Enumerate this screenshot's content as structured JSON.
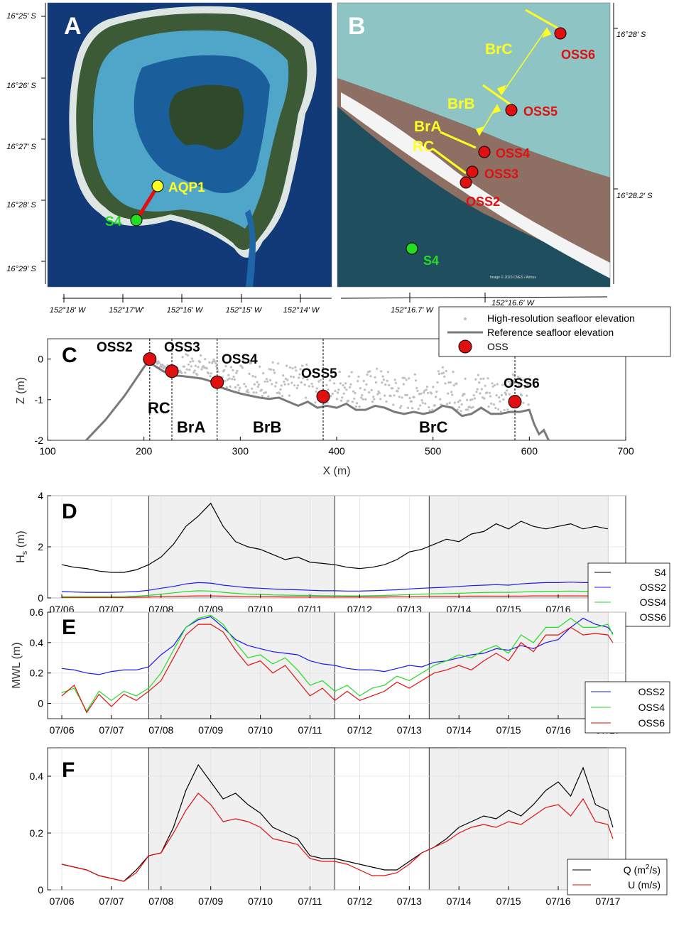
{
  "colors": {
    "red": "#e01010",
    "blue": "#1a1aee",
    "green": "#22dd22",
    "yellow": "#ffff22",
    "black": "#000000",
    "gray_ref": "#7a7a7a",
    "gray_hr": "#bfbfbf",
    "shade": "#f0f0f0",
    "sea": "#123a78",
    "lagoon": "#4fa6c8",
    "land": "#2f4a2a",
    "reefflat": "#8d6f63",
    "surf": "#f4f4f4",
    "ocean_b": "#1f4e5e",
    "lagoon_b": "#8ec4c4"
  },
  "panels": {
    "A": {
      "letter": "A",
      "lat_labels": [
        "16°25' S",
        "16°26' S",
        "16°27' S",
        "16°28' S",
        "16°29' S"
      ],
      "lon_labels": [
        "152°18' W",
        "152°17'W'",
        "152°16' W",
        "152°15' W",
        "152°14' W"
      ],
      "stations": [
        {
          "label": "AQP1",
          "color": "yellow"
        },
        {
          "label": "S4",
          "color": "green"
        }
      ],
      "icons": [
        "island-satellite-image"
      ]
    },
    "B": {
      "letter": "B",
      "lat_labels": [
        "16°28' S",
        "16°28.2' S"
      ],
      "lon_labels": [
        "152°16.7' W",
        "152°16.6' W"
      ],
      "stations": [
        "OSS6",
        "OSS5",
        "OSS4",
        "OSS3",
        "OSS2",
        "S4"
      ],
      "zones": [
        "BrC",
        "BrB",
        "BrA",
        "RC"
      ],
      "credit": "Image © 2020 CNES / Airbus"
    },
    "C": {
      "letter": "C",
      "ylabel": "Z (m)",
      "xlabel": "X (m)",
      "xticks": [
        "100",
        "200",
        "300",
        "400",
        "500",
        "600",
        "700"
      ],
      "yticks": [
        "0",
        "-1",
        "-2"
      ],
      "legend": [
        "High-resolution seafloor elevation",
        "Reference seafloor elevation",
        "OSS"
      ],
      "sensors": [
        "OSS2",
        "OSS3",
        "OSS4",
        "OSS5",
        "OSS6"
      ],
      "zones": [
        "RC",
        "BrA",
        "BrB",
        "BrC"
      ]
    },
    "D": {
      "letter": "D",
      "ylabel": "H",
      "ylabel_sub": "s",
      "ylabel_unit": " (m)",
      "yticks": [
        "0",
        "2",
        "4"
      ],
      "legend": [
        "S4",
        "OSS2",
        "OSS4",
        "OSS6"
      ]
    },
    "E": {
      "letter": "E",
      "ylabel": "MWL (m)",
      "yticks": [
        "0",
        "0.2",
        "0.4",
        "0.6"
      ],
      "legend": [
        "OSS2",
        "OSS4",
        "OSS6"
      ]
    },
    "F": {
      "letter": "F",
      "yticks": [
        "0",
        "0.2",
        "0.4"
      ],
      "legend_q": "Q (m",
      "legend_q_sup": "2",
      "legend_q_end": "/s)",
      "legend_u": "U (m/s)"
    },
    "date_ticks": [
      "07/06",
      "07/07",
      "07/08",
      "07/09",
      "07/10",
      "07/11",
      "07/12",
      "07/13",
      "07/14",
      "07/15",
      "07/16",
      "07/17"
    ]
  },
  "chart_data": [
    {
      "type": "line",
      "panel": "C",
      "xlabel": "X (m)",
      "ylabel": "Z (m)",
      "xlim": [
        100,
        700
      ],
      "ylim": [
        -2,
        0.5
      ],
      "series": [
        {
          "name": "Reference seafloor elevation",
          "x": [
            140,
            150,
            160,
            170,
            180,
            190,
            200,
            205,
            210,
            220,
            230,
            240,
            250,
            260,
            270,
            280,
            290,
            300,
            310,
            320,
            330,
            340,
            350,
            360,
            370,
            380,
            390,
            400,
            410,
            420,
            430,
            440,
            450,
            460,
            470,
            480,
            490,
            500,
            510,
            520,
            530,
            540,
            550,
            560,
            570,
            580,
            590,
            600,
            605,
            610,
            615,
            620
          ],
          "y": [
            -2.0,
            -1.75,
            -1.5,
            -1.2,
            -0.9,
            -0.55,
            -0.2,
            -0.05,
            -0.15,
            -0.3,
            -0.4,
            -0.42,
            -0.45,
            -0.48,
            -0.55,
            -0.7,
            -0.78,
            -0.85,
            -0.9,
            -0.95,
            -0.98,
            -0.95,
            -1.05,
            -1.15,
            -1.05,
            -1.2,
            -1.15,
            -1.2,
            -1.1,
            -1.25,
            -1.25,
            -1.15,
            -1.2,
            -1.3,
            -1.35,
            -1.3,
            -1.35,
            -1.3,
            -1.15,
            -1.2,
            -1.4,
            -1.35,
            -1.2,
            -1.35,
            -1.35,
            -1.3,
            -1.3,
            -1.25,
            -1.6,
            -1.85,
            -1.75,
            -2.0
          ]
        },
        {
          "name": "OSS",
          "labels": [
            "OSS2",
            "OSS3",
            "OSS4",
            "OSS5",
            "OSS6"
          ],
          "x": [
            206,
            229,
            276,
            386,
            585
          ],
          "y": [
            0.0,
            -0.3,
            -0.57,
            -0.92,
            -1.05
          ]
        }
      ],
      "zone_boundaries_x": [
        206,
        229,
        276,
        386,
        585
      ]
    },
    {
      "type": "line",
      "panel": "D",
      "ylabel": "Hs (m)",
      "ylim": [
        0,
        4
      ],
      "x_days": [
        0,
        0.25,
        0.5,
        0.75,
        1.0,
        1.25,
        1.5,
        1.75,
        2.0,
        2.25,
        2.5,
        2.75,
        3.0,
        3.25,
        3.5,
        3.75,
        4.0,
        4.25,
        4.5,
        4.75,
        5.0,
        5.25,
        5.5,
        5.75,
        6.0,
        6.25,
        6.5,
        6.75,
        7.0,
        7.25,
        7.5,
        7.75,
        8.0,
        8.25,
        8.5,
        8.75,
        9.0,
        9.25,
        9.5,
        9.75,
        10.0,
        10.25,
        10.5,
        10.75,
        11.0
      ],
      "series": [
        {
          "name": "S4",
          "values": [
            1.3,
            1.2,
            1.15,
            1.05,
            1.0,
            1.0,
            1.1,
            1.3,
            1.6,
            2.1,
            2.8,
            3.2,
            3.7,
            2.8,
            2.2,
            2.0,
            1.9,
            1.7,
            1.5,
            1.6,
            1.4,
            1.35,
            1.3,
            1.2,
            1.15,
            1.2,
            1.3,
            1.5,
            1.8,
            1.9,
            2.1,
            2.3,
            2.2,
            2.5,
            2.6,
            2.9,
            2.7,
            3.0,
            2.8,
            2.7,
            2.8,
            2.9,
            2.7,
            2.8,
            2.7
          ]
        },
        {
          "name": "OSS2",
          "values": [
            0.25,
            0.23,
            0.22,
            0.22,
            0.22,
            0.23,
            0.25,
            0.3,
            0.38,
            0.45,
            0.55,
            0.6,
            0.58,
            0.5,
            0.45,
            0.4,
            0.38,
            0.35,
            0.33,
            0.32,
            0.3,
            0.28,
            0.28,
            0.27,
            0.27,
            0.28,
            0.3,
            0.32,
            0.35,
            0.38,
            0.4,
            0.42,
            0.45,
            0.48,
            0.5,
            0.52,
            0.5,
            0.55,
            0.58,
            0.6,
            0.6,
            0.62,
            0.6,
            0.6,
            0.6
          ]
        },
        {
          "name": "OSS4",
          "values": [
            0.05,
            0.05,
            0.05,
            0.05,
            0.05,
            0.05,
            0.07,
            0.1,
            0.15,
            0.2,
            0.25,
            0.28,
            0.27,
            0.22,
            0.18,
            0.15,
            0.14,
            0.12,
            0.11,
            0.1,
            0.1,
            0.09,
            0.09,
            0.08,
            0.08,
            0.09,
            0.1,
            0.11,
            0.13,
            0.15,
            0.16,
            0.17,
            0.18,
            0.2,
            0.21,
            0.22,
            0.22,
            0.23,
            0.25,
            0.26,
            0.26,
            0.27,
            0.26,
            0.26,
            0.26
          ]
        },
        {
          "name": "OSS6",
          "values": [
            0.02,
            0.02,
            0.02,
            0.02,
            0.02,
            0.02,
            0.03,
            0.04,
            0.05,
            0.06,
            0.07,
            0.08,
            0.08,
            0.07,
            0.06,
            0.05,
            0.05,
            0.05,
            0.04,
            0.04,
            0.04,
            0.04,
            0.04,
            0.04,
            0.04,
            0.04,
            0.04,
            0.05,
            0.05,
            0.06,
            0.06,
            0.06,
            0.06,
            0.07,
            0.07,
            0.07,
            0.07,
            0.07,
            0.08,
            0.08,
            0.08,
            0.08,
            0.08,
            0.08,
            0.08
          ]
        }
      ],
      "shaded_days": [
        [
          1.75,
          5.5
        ],
        [
          7.4,
          11.0
        ]
      ]
    },
    {
      "type": "line",
      "panel": "E",
      "ylabel": "MWL (m)",
      "ylim": [
        -0.1,
        0.6
      ],
      "x_days": [
        0,
        0.25,
        0.5,
        0.75,
        1.0,
        1.25,
        1.5,
        1.75,
        2.0,
        2.25,
        2.5,
        2.75,
        3.0,
        3.25,
        3.5,
        3.75,
        4.0,
        4.25,
        4.5,
        4.75,
        5.0,
        5.25,
        5.5,
        5.75,
        6.0,
        6.25,
        6.5,
        6.75,
        7.0,
        7.25,
        7.5,
        7.75,
        8.0,
        8.25,
        8.5,
        8.75,
        9.0,
        9.25,
        9.5,
        9.75,
        10.0,
        10.25,
        10.5,
        10.75,
        11.0,
        11.1
      ],
      "series": [
        {
          "name": "OSS2",
          "values": [
            0.23,
            0.22,
            0.2,
            0.19,
            0.21,
            0.22,
            0.22,
            0.24,
            0.32,
            0.38,
            0.5,
            0.55,
            0.57,
            0.5,
            0.42,
            0.38,
            0.36,
            0.34,
            0.33,
            0.32,
            0.28,
            0.26,
            0.25,
            0.23,
            0.22,
            0.22,
            0.21,
            0.23,
            0.25,
            0.24,
            0.27,
            0.28,
            0.3,
            0.32,
            0.33,
            0.36,
            0.35,
            0.38,
            0.36,
            0.4,
            0.42,
            0.5,
            0.56,
            0.52,
            0.5,
            0.46
          ]
        },
        {
          "name": "OSS4",
          "values": [
            0.07,
            0.1,
            -0.05,
            0.08,
            0.02,
            0.08,
            0.05,
            0.1,
            0.2,
            0.35,
            0.5,
            0.56,
            0.58,
            0.52,
            0.4,
            0.3,
            0.32,
            0.26,
            0.3,
            0.22,
            0.12,
            0.15,
            0.08,
            0.12,
            0.05,
            0.1,
            0.12,
            0.18,
            0.15,
            0.2,
            0.25,
            0.28,
            0.32,
            0.3,
            0.35,
            0.38,
            0.33,
            0.45,
            0.4,
            0.5,
            0.5,
            0.56,
            0.5,
            0.5,
            0.52,
            0.45
          ]
        },
        {
          "name": "OSS6",
          "values": [
            0.05,
            0.12,
            -0.06,
            0.06,
            -0.02,
            0.06,
            0.02,
            0.08,
            0.15,
            0.3,
            0.45,
            0.52,
            0.52,
            0.47,
            0.35,
            0.25,
            0.28,
            0.2,
            0.25,
            0.15,
            0.05,
            0.1,
            0.02,
            0.08,
            0.02,
            0.05,
            0.08,
            0.14,
            0.1,
            0.15,
            0.2,
            0.22,
            0.25,
            0.22,
            0.28,
            0.33,
            0.28,
            0.4,
            0.34,
            0.45,
            0.45,
            0.5,
            0.45,
            0.46,
            0.45,
            0.4
          ]
        }
      ],
      "shaded_days": [
        [
          1.75,
          5.5
        ],
        [
          7.4,
          11.0
        ]
      ]
    },
    {
      "type": "line",
      "panel": "F",
      "ylim": [
        0,
        0.5
      ],
      "x_days": [
        0,
        0.25,
        0.5,
        0.75,
        1.0,
        1.25,
        1.5,
        1.75,
        2.0,
        2.25,
        2.5,
        2.75,
        3.0,
        3.25,
        3.5,
        3.75,
        4.0,
        4.25,
        4.5,
        4.75,
        5.0,
        5.25,
        5.5,
        5.75,
        6.0,
        6.25,
        6.5,
        6.75,
        7.0,
        7.25,
        7.5,
        7.75,
        8.0,
        8.25,
        8.5,
        8.75,
        9.0,
        9.25,
        9.5,
        9.75,
        10.0,
        10.25,
        10.5,
        10.75,
        11.0,
        11.1
      ],
      "series": [
        {
          "name": "Q (m²/s)",
          "values": [
            0.09,
            0.08,
            0.07,
            0.05,
            0.04,
            0.03,
            0.07,
            0.12,
            0.13,
            0.22,
            0.35,
            0.44,
            0.38,
            0.32,
            0.34,
            0.3,
            0.27,
            0.22,
            0.2,
            0.18,
            0.12,
            0.11,
            0.11,
            0.1,
            0.09,
            0.08,
            0.07,
            0.07,
            0.1,
            0.13,
            0.15,
            0.18,
            0.22,
            0.24,
            0.26,
            0.25,
            0.28,
            0.26,
            0.3,
            0.35,
            0.38,
            0.33,
            0.43,
            0.3,
            0.28,
            0.22
          ]
        },
        {
          "name": "U (m/s)",
          "values": [
            0.09,
            0.08,
            0.07,
            0.05,
            0.04,
            0.03,
            0.06,
            0.12,
            0.13,
            0.2,
            0.28,
            0.34,
            0.3,
            0.24,
            0.25,
            0.24,
            0.22,
            0.18,
            0.17,
            0.16,
            0.11,
            0.1,
            0.1,
            0.09,
            0.07,
            0.05,
            0.05,
            0.06,
            0.09,
            0.13,
            0.15,
            0.17,
            0.2,
            0.22,
            0.23,
            0.22,
            0.24,
            0.23,
            0.26,
            0.29,
            0.3,
            0.26,
            0.32,
            0.24,
            0.23,
            0.18
          ]
        }
      ],
      "shaded_days": [
        [
          1.75,
          5.5
        ],
        [
          7.4,
          11.0
        ]
      ]
    }
  ]
}
